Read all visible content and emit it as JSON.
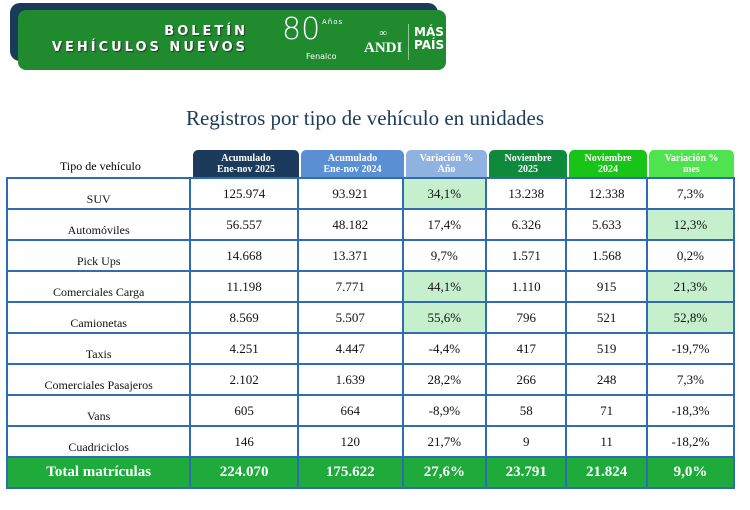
{
  "banner": {
    "line1": "BOLETÍN",
    "line2": "VEHÍCULOS NUEVOS",
    "logo_fenalco_number": "80",
    "logo_fenalco_years": "Años",
    "logo_fenalco_name": "Fenalco",
    "logo_andi": "ANDI",
    "logo_mas_pais_1": "MÁS",
    "logo_mas_pais_2": "PAÍS"
  },
  "title": "Registros por tipo de vehículo en unidades",
  "table": {
    "label_header": "Tipo de vehículo",
    "columns": [
      {
        "l1": "Acumulado",
        "l2": "Ene-nov 2025",
        "color": "#1b3a5c"
      },
      {
        "l1": "Acumulado",
        "l2": "Ene-nov 2024",
        "color": "#5b8fd4"
      },
      {
        "l1": "Variación %",
        "l2": "Año",
        "color": "#8fb2e0"
      },
      {
        "l1": "Noviembre",
        "l2": "2025",
        "color": "#0f8a3c"
      },
      {
        "l1": "Noviembre",
        "l2": "2024",
        "color": "#19c418"
      },
      {
        "l1": "Variación %",
        "l2": "mes",
        "color": "#4fe34f"
      }
    ],
    "highlight_color": "#c6efce",
    "rows": [
      {
        "label": "SUV",
        "values": [
          "125.974",
          "93.921",
          "34,1%",
          "13.238",
          "12.338",
          "7,3%"
        ],
        "hl": [
          2
        ]
      },
      {
        "label": "Automóviles",
        "values": [
          "56.557",
          "48.182",
          "17,4%",
          "6.326",
          "5.633",
          "12,3%"
        ],
        "hl": [
          5
        ]
      },
      {
        "label": "Pick Ups",
        "values": [
          "14.668",
          "13.371",
          "9,7%",
          "1.571",
          "1.568",
          "0,2%"
        ],
        "hl": []
      },
      {
        "label": "Comerciales Carga",
        "values": [
          "11.198",
          "7.771",
          "44,1%",
          "1.110",
          "915",
          "21,3%"
        ],
        "hl": [
          2,
          5
        ]
      },
      {
        "label": "Camionetas",
        "values": [
          "8.569",
          "5.507",
          "55,6%",
          "796",
          "521",
          "52,8%"
        ],
        "hl": [
          2,
          5
        ]
      },
      {
        "label": "Taxis",
        "values": [
          "4.251",
          "4.447",
          "-4,4%",
          "417",
          "519",
          "-19,7%"
        ],
        "hl": []
      },
      {
        "label": "Comerciales Pasajeros",
        "values": [
          "2.102",
          "1.639",
          "28,2%",
          "266",
          "248",
          "7,3%"
        ],
        "hl": []
      },
      {
        "label": "Vans",
        "values": [
          "605",
          "664",
          "-8,9%",
          "58",
          "71",
          "-18,3%"
        ],
        "hl": []
      },
      {
        "label": "Cuadriciclos",
        "values": [
          "146",
          "120",
          "21,7%",
          "9",
          "11",
          "-18,2%"
        ],
        "hl": []
      }
    ],
    "total": {
      "label": "Total matrículas",
      "values": [
        "224.070",
        "175.622",
        "27,6%",
        "23.791",
        "21.824",
        "9,0%"
      ]
    }
  }
}
